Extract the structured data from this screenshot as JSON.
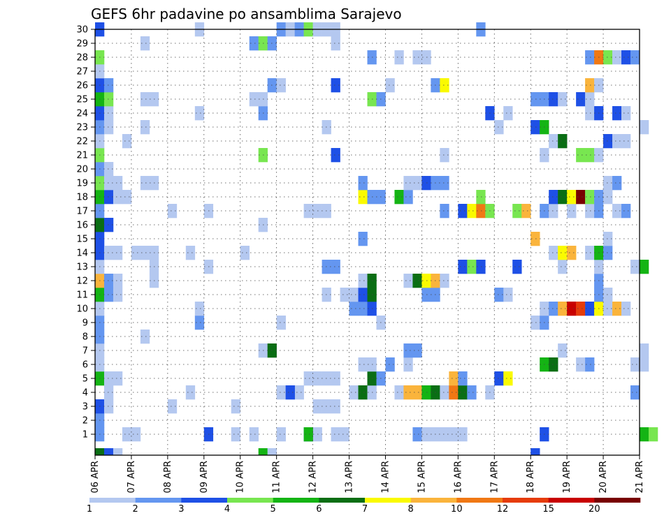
{
  "chart_data": {
    "type": "heatmap",
    "title": "GEFS 6hr padavine po ansamblima Sarajevo",
    "xlabel": "",
    "ylabel": "",
    "x_ticks": [
      "06 APR",
      "07 APR",
      "08 APR",
      "09 APR",
      "10 APR",
      "11 APR",
      "12 APR",
      "13 APR",
      "14 APR",
      "15 APR",
      "16 APR",
      "17 APR",
      "18 APR",
      "19 APR",
      "20 APR",
      "21 APR"
    ],
    "y_ticks": [
      "1",
      "2",
      "3",
      "4",
      "5",
      "6",
      "7",
      "8",
      "9",
      "10",
      "11",
      "12",
      "13",
      "14",
      "15",
      "16",
      "17",
      "18",
      "19",
      "20",
      "21",
      "22",
      "23",
      "24",
      "25",
      "26",
      "27",
      "28",
      "29",
      "30"
    ],
    "grid": true,
    "colorbar": {
      "labels": [
        "1",
        "2",
        "3",
        "4",
        "5",
        "6",
        "7",
        "8",
        "10",
        "12",
        "15",
        "20"
      ],
      "colors": [
        "#b4c8f0",
        "#6496f0",
        "#1e50e6",
        "#78e650",
        "#14b414",
        "#0a6e14",
        "#fafa00",
        "#fab43c",
        "#f07814",
        "#e63c0a",
        "#c80000",
        "#780000"
      ]
    },
    "cell_unit_hours": 6,
    "cells": [
      [
        0,
        1,
        2
      ],
      [
        3,
        1,
        1
      ],
      [
        4,
        1,
        1
      ],
      [
        12,
        1,
        3
      ],
      [
        15,
        1,
        1
      ],
      [
        17,
        1,
        1
      ],
      [
        23,
        1,
        3
      ],
      [
        24,
        1,
        1
      ],
      [
        35,
        1,
        2
      ],
      [
        49,
        1,
        3
      ],
      [
        0,
        2,
        2
      ],
      [
        20,
        1,
        1
      ],
      [
        23,
        1,
        5
      ],
      [
        26,
        1,
        1
      ],
      [
        27,
        1,
        1
      ],
      [
        36,
        1,
        1
      ],
      [
        37,
        1,
        1
      ],
      [
        38,
        1,
        1
      ],
      [
        39,
        1,
        1
      ],
      [
        40,
        1,
        1
      ],
      [
        60,
        1,
        5
      ],
      [
        61,
        1,
        4
      ],
      [
        0,
        3,
        3
      ],
      [
        1,
        3,
        1
      ],
      [
        8,
        3,
        1
      ],
      [
        15,
        3,
        1
      ],
      [
        24,
        3,
        1
      ],
      [
        25,
        3,
        1
      ],
      [
        26,
        3,
        1
      ],
      [
        1,
        4,
        1
      ],
      [
        10,
        4,
        1
      ],
      [
        20,
        4,
        1
      ],
      [
        22,
        4,
        1
      ],
      [
        21,
        4,
        3
      ],
      [
        28,
        4,
        1
      ],
      [
        29,
        4,
        6
      ],
      [
        30,
        4,
        1
      ],
      [
        33,
        4,
        1
      ],
      [
        34,
        4,
        8
      ],
      [
        35,
        4,
        8
      ],
      [
        36,
        4,
        5
      ],
      [
        37,
        4,
        6
      ],
      [
        38,
        4,
        1
      ],
      [
        39,
        4,
        9
      ],
      [
        40,
        4,
        6
      ],
      [
        41,
        4,
        2
      ],
      [
        43,
        4,
        1
      ],
      [
        59,
        4,
        2
      ],
      [
        0,
        5,
        5
      ],
      [
        1,
        5,
        1
      ],
      [
        2,
        5,
        1
      ],
      [
        23,
        5,
        1
      ],
      [
        24,
        5,
        1
      ],
      [
        25,
        5,
        1
      ],
      [
        26,
        5,
        1
      ],
      [
        30,
        5,
        6
      ],
      [
        31,
        5,
        2
      ],
      [
        39,
        5,
        8
      ],
      [
        40,
        5,
        2
      ],
      [
        44,
        5,
        3
      ],
      [
        45,
        5,
        7
      ],
      [
        0,
        6,
        1
      ],
      [
        29,
        6,
        1
      ],
      [
        30,
        6,
        1
      ],
      [
        32,
        6,
        2
      ],
      [
        34,
        6,
        1
      ],
      [
        49,
        6,
        5
      ],
      [
        50,
        6,
        6
      ],
      [
        53,
        6,
        1
      ],
      [
        54,
        6,
        2
      ],
      [
        59,
        6,
        1
      ],
      [
        60,
        6,
        1
      ],
      [
        0,
        7,
        1
      ],
      [
        18,
        7,
        1
      ],
      [
        19,
        7,
        6
      ],
      [
        34,
        7,
        2
      ],
      [
        35,
        7,
        2
      ],
      [
        51,
        7,
        1
      ],
      [
        60,
        7,
        1
      ],
      [
        0,
        8,
        2
      ],
      [
        5,
        8,
        1
      ],
      [
        0,
        9,
        2
      ],
      [
        11,
        9,
        2
      ],
      [
        20,
        9,
        1
      ],
      [
        31,
        9,
        1
      ],
      [
        48,
        9,
        1
      ],
      [
        49,
        9,
        2
      ],
      [
        0,
        10,
        1
      ],
      [
        11,
        10,
        1
      ],
      [
        28,
        10,
        2
      ],
      [
        29,
        10,
        2
      ],
      [
        30,
        10,
        3
      ],
      [
        49,
        10,
        1
      ],
      [
        50,
        10,
        2
      ],
      [
        51,
        10,
        8
      ],
      [
        52,
        10,
        11
      ],
      [
        53,
        10,
        10
      ],
      [
        54,
        10,
        3
      ],
      [
        55,
        10,
        7
      ],
      [
        56,
        10,
        1
      ],
      [
        57,
        10,
        8
      ],
      [
        58,
        10,
        1
      ],
      [
        0,
        11,
        5
      ],
      [
        1,
        11,
        2
      ],
      [
        2,
        11,
        1
      ],
      [
        25,
        11,
        1
      ],
      [
        27,
        11,
        1
      ],
      [
        28,
        11,
        1
      ],
      [
        29,
        11,
        3
      ],
      [
        30,
        11,
        6
      ],
      [
        36,
        11,
        2
      ],
      [
        37,
        11,
        2
      ],
      [
        44,
        11,
        2
      ],
      [
        45,
        11,
        1
      ],
      [
        55,
        11,
        2
      ],
      [
        56,
        11,
        1
      ],
      [
        0,
        12,
        8
      ],
      [
        1,
        12,
        2
      ],
      [
        2,
        12,
        1
      ],
      [
        6,
        12,
        1
      ],
      [
        29,
        12,
        1
      ],
      [
        30,
        12,
        6
      ],
      [
        34,
        12,
        1
      ],
      [
        35,
        12,
        6
      ],
      [
        36,
        12,
        7
      ],
      [
        37,
        12,
        8
      ],
      [
        38,
        12,
        1
      ],
      [
        55,
        12,
        2
      ],
      [
        0,
        13,
        1
      ],
      [
        6,
        13,
        1
      ],
      [
        12,
        13,
        1
      ],
      [
        25,
        13,
        2
      ],
      [
        26,
        13,
        2
      ],
      [
        40,
        13,
        3
      ],
      [
        41,
        13,
        4
      ],
      [
        42,
        13,
        3
      ],
      [
        46,
        13,
        3
      ],
      [
        51,
        13,
        1
      ],
      [
        55,
        13,
        1
      ],
      [
        59,
        13,
        1
      ],
      [
        60,
        13,
        5
      ],
      [
        0,
        14,
        3
      ],
      [
        1,
        14,
        1
      ],
      [
        2,
        14,
        1
      ],
      [
        4,
        14,
        1
      ],
      [
        5,
        14,
        1
      ],
      [
        6,
        14,
        1
      ],
      [
        10,
        14,
        1
      ],
      [
        16,
        14,
        1
      ],
      [
        50,
        14,
        1
      ],
      [
        51,
        14,
        7
      ],
      [
        52,
        14,
        8
      ],
      [
        54,
        14,
        1
      ],
      [
        55,
        14,
        5
      ],
      [
        56,
        14,
        2
      ],
      [
        0,
        15,
        3
      ],
      [
        29,
        15,
        2
      ],
      [
        56,
        15,
        1
      ],
      [
        48,
        15,
        8
      ],
      [
        0,
        16,
        6
      ],
      [
        1,
        16,
        3
      ],
      [
        18,
        16,
        1
      ],
      [
        0,
        17,
        2
      ],
      [
        8,
        17,
        1
      ],
      [
        12,
        17,
        1
      ],
      [
        23,
        17,
        1
      ],
      [
        24,
        17,
        1
      ],
      [
        25,
        17,
        1
      ],
      [
        38,
        17,
        2
      ],
      [
        40,
        17,
        3
      ],
      [
        41,
        17,
        7
      ],
      [
        42,
        17,
        9
      ],
      [
        43,
        17,
        4
      ],
      [
        46,
        17,
        4
      ],
      [
        47,
        17,
        8
      ],
      [
        49,
        17,
        2
      ],
      [
        50,
        17,
        1
      ],
      [
        52,
        17,
        1
      ],
      [
        54,
        17,
        1
      ],
      [
        55,
        17,
        2
      ],
      [
        57,
        17,
        1
      ],
      [
        58,
        17,
        2
      ],
      [
        0,
        18,
        5
      ],
      [
        1,
        18,
        3
      ],
      [
        2,
        18,
        1
      ],
      [
        3,
        18,
        1
      ],
      [
        29,
        18,
        7
      ],
      [
        30,
        18,
        2
      ],
      [
        31,
        18,
        2
      ],
      [
        33,
        18,
        5
      ],
      [
        34,
        18,
        2
      ],
      [
        42,
        18,
        4
      ],
      [
        50,
        18,
        3
      ],
      [
        51,
        18,
        6
      ],
      [
        52,
        18,
        7
      ],
      [
        53,
        18,
        12
      ],
      [
        54,
        18,
        4
      ],
      [
        55,
        18,
        2
      ],
      [
        56,
        18,
        1
      ],
      [
        0,
        19,
        4
      ],
      [
        1,
        19,
        1
      ],
      [
        2,
        19,
        1
      ],
      [
        5,
        19,
        1
      ],
      [
        6,
        19,
        1
      ],
      [
        29,
        19,
        2
      ],
      [
        34,
        19,
        1
      ],
      [
        35,
        19,
        1
      ],
      [
        36,
        19,
        3
      ],
      [
        37,
        19,
        2
      ],
      [
        38,
        19,
        2
      ],
      [
        56,
        19,
        1
      ],
      [
        57,
        19,
        2
      ],
      [
        0,
        20,
        2
      ],
      [
        1,
        20,
        1
      ],
      [
        0,
        21,
        4
      ],
      [
        18,
        21,
        4
      ],
      [
        26,
        21,
        3
      ],
      [
        38,
        21,
        1
      ],
      [
        49,
        21,
        1
      ],
      [
        53,
        21,
        4
      ],
      [
        54,
        21,
        4
      ],
      [
        55,
        21,
        1
      ],
      [
        0,
        22,
        1
      ],
      [
        3,
        22,
        1
      ],
      [
        50,
        22,
        1
      ],
      [
        51,
        22,
        6
      ],
      [
        56,
        22,
        3
      ],
      [
        57,
        22,
        1
      ],
      [
        58,
        22,
        1
      ],
      [
        0,
        23,
        2
      ],
      [
        1,
        23,
        1
      ],
      [
        5,
        23,
        1
      ],
      [
        25,
        23,
        1
      ],
      [
        44,
        23,
        1
      ],
      [
        48,
        23,
        3
      ],
      [
        49,
        23,
        5
      ],
      [
        60,
        23,
        1
      ],
      [
        0,
        24,
        3
      ],
      [
        1,
        24,
        1
      ],
      [
        11,
        24,
        1
      ],
      [
        18,
        24,
        2
      ],
      [
        43,
        24,
        3
      ],
      [
        45,
        24,
        1
      ],
      [
        54,
        24,
        1
      ],
      [
        55,
        24,
        3
      ],
      [
        57,
        24,
        3
      ],
      [
        58,
        24,
        1
      ],
      [
        0,
        25,
        5
      ],
      [
        1,
        25,
        4
      ],
      [
        5,
        25,
        1
      ],
      [
        6,
        25,
        1
      ],
      [
        17,
        25,
        1
      ],
      [
        18,
        25,
        1
      ],
      [
        30,
        25,
        4
      ],
      [
        31,
        25,
        2
      ],
      [
        48,
        25,
        2
      ],
      [
        49,
        25,
        2
      ],
      [
        50,
        25,
        3
      ],
      [
        51,
        25,
        1
      ],
      [
        53,
        25,
        3
      ],
      [
        54,
        25,
        1
      ],
      [
        0,
        26,
        3
      ],
      [
        1,
        26,
        2
      ],
      [
        19,
        26,
        2
      ],
      [
        20,
        26,
        1
      ],
      [
        26,
        26,
        3
      ],
      [
        32,
        26,
        1
      ],
      [
        37,
        26,
        2
      ],
      [
        38,
        26,
        7
      ],
      [
        54,
        26,
        8
      ],
      [
        55,
        26,
        1
      ],
      [
        0,
        27,
        1
      ],
      [
        0,
        28,
        4
      ],
      [
        30,
        28,
        2
      ],
      [
        33,
        28,
        1
      ],
      [
        35,
        28,
        1
      ],
      [
        36,
        28,
        1
      ],
      [
        54,
        28,
        2
      ],
      [
        55,
        28,
        9
      ],
      [
        56,
        28,
        4
      ],
      [
        57,
        28,
        1
      ],
      [
        58,
        28,
        3
      ],
      [
        59,
        28,
        2
      ],
      [
        5,
        29,
        1
      ],
      [
        17,
        29,
        2
      ],
      [
        18,
        29,
        4
      ],
      [
        19,
        29,
        2
      ],
      [
        26,
        29,
        1
      ],
      [
        0,
        30,
        3
      ],
      [
        11,
        30,
        1
      ],
      [
        20,
        30,
        2
      ],
      [
        21,
        30,
        1
      ],
      [
        22,
        30,
        2
      ],
      [
        23,
        30,
        4
      ],
      [
        24,
        30,
        1
      ],
      [
        25,
        30,
        1
      ],
      [
        26,
        30,
        1
      ],
      [
        42,
        30,
        2
      ],
      [
        0,
        0,
        6
      ],
      [
        1,
        0,
        3
      ],
      [
        2,
        0,
        1
      ],
      [
        18,
        0,
        5
      ],
      [
        19,
        0,
        1
      ],
      [
        48,
        0,
        3
      ]
    ]
  }
}
